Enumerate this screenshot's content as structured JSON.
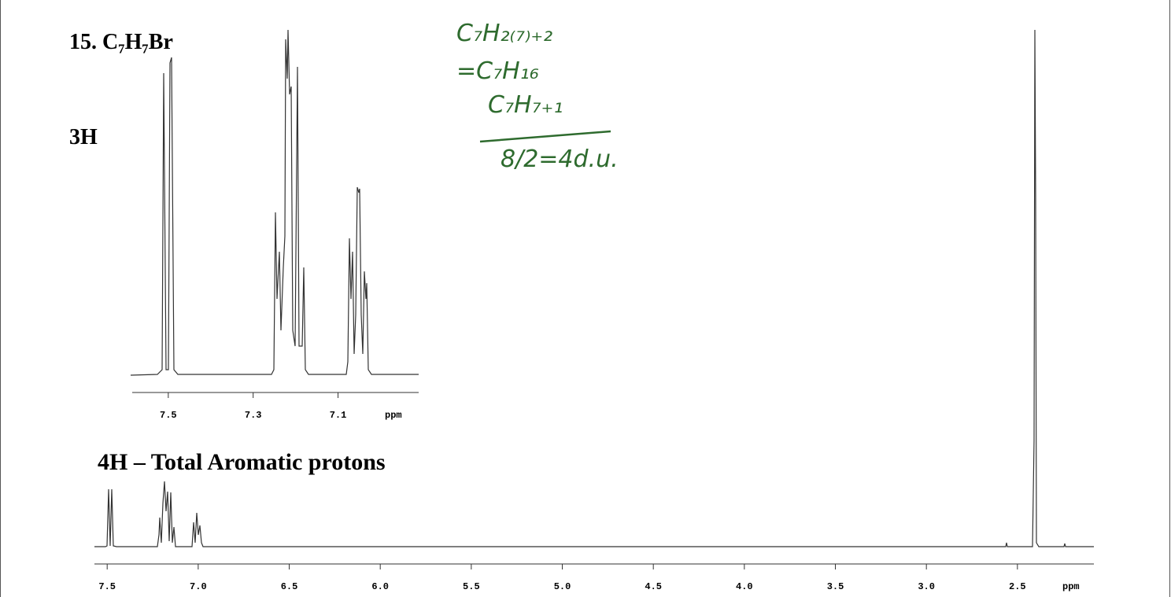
{
  "header": {
    "title": "15. C₇H₇Br"
  },
  "annotations": [
    "3H",
    "4H – Total Aromatic protons"
  ],
  "handwritten": [
    "C₇H₂₍₇₎₊₂",
    "=C₇H₁₆",
    "C₇H₇₊₁",
    "8/2=4d.u."
  ],
  "inset_spectrum": {
    "x_label": "ppm",
    "xlim": [
      7.585,
      6.91
    ],
    "xticks": [
      7.5,
      7.3,
      7.1
    ]
  },
  "main_spectrum": {
    "x_label": "ppm",
    "xlim": [
      7.57,
      2.08
    ],
    "xticks": [
      7.5,
      {
        "value": 7,
        "label": "7.0"
      },
      6.5,
      {
        "value": 6,
        "label": "6.0"
      },
      5.5,
      {
        "value": 5,
        "label": "5.0"
      },
      4.5,
      {
        "value": 4,
        "label": "4.0"
      },
      3.5,
      {
        "value": 3,
        "label": "3.0"
      },
      2.5
    ]
  }
}
